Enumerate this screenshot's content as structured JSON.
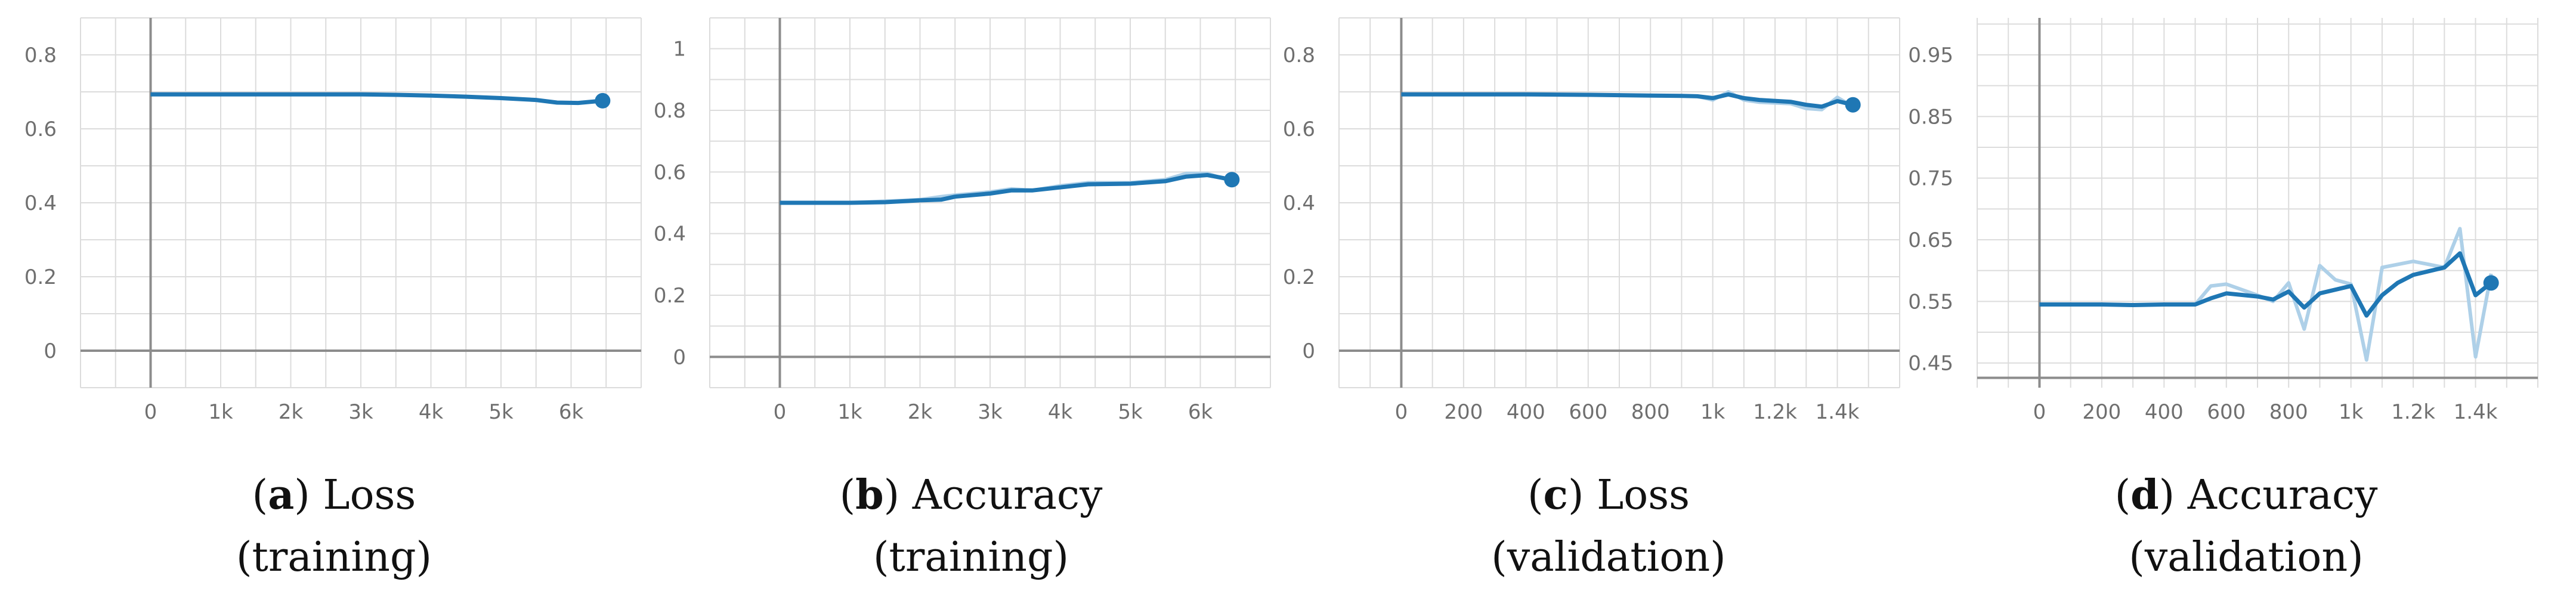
{
  "chart_data": [
    {
      "type": "line",
      "caption": {
        "letter": "a",
        "line1": "Loss",
        "line2": "(training)"
      },
      "x_ticks": [
        {
          "v": 0,
          "label": "0"
        },
        {
          "v": 1000,
          "label": "1k"
        },
        {
          "v": 2000,
          "label": "2k"
        },
        {
          "v": 3000,
          "label": "3k"
        },
        {
          "v": 4000,
          "label": "4k"
        },
        {
          "v": 5000,
          "label": "5k"
        },
        {
          "v": 6000,
          "label": "6k"
        }
      ],
      "y_ticks": [
        {
          "v": 0,
          "label": "0"
        },
        {
          "v": 0.2,
          "label": "0.2"
        },
        {
          "v": 0.4,
          "label": "0.4"
        },
        {
          "v": 0.6,
          "label": "0.6"
        },
        {
          "v": 0.8,
          "label": "0.8"
        }
      ],
      "xlim": [
        -1000,
        7000
      ],
      "ylim": [
        -0.1,
        0.9
      ],
      "grid": true,
      "series": [
        {
          "smoothed": [
            [
              0,
              0.693
            ],
            [
              500,
              0.693
            ],
            [
              1000,
              0.693
            ],
            [
              1500,
              0.693
            ],
            [
              2000,
              0.693
            ],
            [
              2500,
              0.693
            ],
            [
              3000,
              0.693
            ],
            [
              3500,
              0.692
            ],
            [
              4000,
              0.69
            ],
            [
              4500,
              0.687
            ],
            [
              5000,
              0.683
            ],
            [
              5500,
              0.678
            ],
            [
              5800,
              0.671
            ],
            [
              6100,
              0.67
            ],
            [
              6450,
              0.676
            ]
          ],
          "raw": [
            [
              0,
              0.693
            ],
            [
              500,
              0.693
            ],
            [
              1000,
              0.693
            ],
            [
              1500,
              0.693
            ],
            [
              2000,
              0.693
            ],
            [
              2500,
              0.693
            ],
            [
              3000,
              0.693
            ],
            [
              3500,
              0.692
            ],
            [
              4000,
              0.69
            ],
            [
              4500,
              0.687
            ],
            [
              5000,
              0.683
            ],
            [
              5500,
              0.678
            ],
            [
              5800,
              0.671
            ],
            [
              6100,
              0.67
            ],
            [
              6450,
              0.676
            ]
          ]
        }
      ]
    },
    {
      "type": "line",
      "caption": {
        "letter": "b",
        "line1": "Accuracy",
        "line2": "(training)"
      },
      "x_ticks": [
        {
          "v": 0,
          "label": "0"
        },
        {
          "v": 1000,
          "label": "1k"
        },
        {
          "v": 2000,
          "label": "2k"
        },
        {
          "v": 3000,
          "label": "3k"
        },
        {
          "v": 4000,
          "label": "4k"
        },
        {
          "v": 5000,
          "label": "5k"
        },
        {
          "v": 6000,
          "label": "6k"
        }
      ],
      "y_ticks": [
        {
          "v": 0,
          "label": "0"
        },
        {
          "v": 0.2,
          "label": "0.2"
        },
        {
          "v": 0.4,
          "label": "0.4"
        },
        {
          "v": 0.6,
          "label": "0.6"
        },
        {
          "v": 0.8,
          "label": "0.8"
        },
        {
          "v": 1,
          "label": "1"
        }
      ],
      "xlim": [
        -1000,
        7000
      ],
      "ylim": [
        -0.1,
        1.1
      ],
      "grid": true,
      "series": [
        {
          "smoothed": [
            [
              0,
              0.5
            ],
            [
              500,
              0.5
            ],
            [
              1000,
              0.5
            ],
            [
              1500,
              0.502
            ],
            [
              2000,
              0.508
            ],
            [
              2300,
              0.51
            ],
            [
              2500,
              0.52
            ],
            [
              3000,
              0.53
            ],
            [
              3300,
              0.54
            ],
            [
              3600,
              0.54
            ],
            [
              4000,
              0.55
            ],
            [
              4400,
              0.56
            ],
            [
              5000,
              0.562
            ],
            [
              5500,
              0.57
            ],
            [
              5800,
              0.585
            ],
            [
              6100,
              0.59
            ],
            [
              6450,
              0.575
            ]
          ],
          "raw": [
            [
              0,
              0.5
            ],
            [
              500,
              0.5
            ],
            [
              1000,
              0.5
            ],
            [
              1500,
              0.505
            ],
            [
              2000,
              0.51
            ],
            [
              2300,
              0.52
            ],
            [
              2500,
              0.525
            ],
            [
              3000,
              0.535
            ],
            [
              3300,
              0.545
            ],
            [
              3600,
              0.54
            ],
            [
              4000,
              0.555
            ],
            [
              4400,
              0.565
            ],
            [
              5000,
              0.565
            ],
            [
              5500,
              0.575
            ],
            [
              5800,
              0.595
            ],
            [
              6100,
              0.595
            ],
            [
              6450,
              0.57
            ]
          ]
        }
      ]
    },
    {
      "type": "line",
      "caption": {
        "letter": "c",
        "line1": "Loss",
        "line2": "(validation)"
      },
      "x_ticks": [
        {
          "v": 0,
          "label": "0"
        },
        {
          "v": 200,
          "label": "200"
        },
        {
          "v": 400,
          "label": "400"
        },
        {
          "v": 600,
          "label": "600"
        },
        {
          "v": 800,
          "label": "800"
        },
        {
          "v": 1000,
          "label": "1k"
        },
        {
          "v": 1200,
          "label": "1.2k"
        },
        {
          "v": 1400,
          "label": "1.4k"
        }
      ],
      "y_ticks": [
        {
          "v": 0,
          "label": "0"
        },
        {
          "v": 0.2,
          "label": "0.2"
        },
        {
          "v": 0.4,
          "label": "0.4"
        },
        {
          "v": 0.6,
          "label": "0.6"
        },
        {
          "v": 0.8,
          "label": "0.8"
        }
      ],
      "xlim": [
        -200,
        1600
      ],
      "ylim": [
        -0.1,
        0.9
      ],
      "grid": true,
      "series": [
        {
          "smoothed": [
            [
              0,
              0.693
            ],
            [
              200,
              0.693
            ],
            [
              400,
              0.693
            ],
            [
              600,
              0.692
            ],
            [
              800,
              0.69
            ],
            [
              900,
              0.689
            ],
            [
              950,
              0.688
            ],
            [
              1000,
              0.683
            ],
            [
              1050,
              0.693
            ],
            [
              1100,
              0.683
            ],
            [
              1150,
              0.678
            ],
            [
              1250,
              0.673
            ],
            [
              1300,
              0.665
            ],
            [
              1350,
              0.66
            ],
            [
              1400,
              0.675
            ],
            [
              1450,
              0.665
            ]
          ],
          "raw": [
            [
              0,
              0.693
            ],
            [
              200,
              0.693
            ],
            [
              400,
              0.693
            ],
            [
              600,
              0.692
            ],
            [
              800,
              0.69
            ],
            [
              900,
              0.689
            ],
            [
              950,
              0.688
            ],
            [
              1000,
              0.678
            ],
            [
              1050,
              0.7
            ],
            [
              1100,
              0.678
            ],
            [
              1150,
              0.672
            ],
            [
              1250,
              0.668
            ],
            [
              1300,
              0.655
            ],
            [
              1350,
              0.652
            ],
            [
              1400,
              0.685
            ],
            [
              1450,
              0.66
            ]
          ]
        }
      ]
    },
    {
      "type": "line",
      "caption": {
        "letter": "d",
        "line1": "Accuracy",
        "line2": "(validation)"
      },
      "x_ticks": [
        {
          "v": 0,
          "label": "0"
        },
        {
          "v": 200,
          "label": "200"
        },
        {
          "v": 400,
          "label": "400"
        },
        {
          "v": 600,
          "label": "600"
        },
        {
          "v": 800,
          "label": "800"
        },
        {
          "v": 1000,
          "label": "1k"
        },
        {
          "v": 1200,
          "label": "1.2k"
        },
        {
          "v": 1400,
          "label": "1.4k"
        }
      ],
      "y_ticks": [
        {
          "v": 0.45,
          "label": "0.45"
        },
        {
          "v": 0.55,
          "label": "0.55"
        },
        {
          "v": 0.65,
          "label": "0.65"
        },
        {
          "v": 0.75,
          "label": "0.75"
        },
        {
          "v": 0.85,
          "label": "0.85"
        },
        {
          "v": 0.95,
          "label": "0.95"
        }
      ],
      "xlim": [
        -200,
        1600
      ],
      "ylim": [
        0.41,
        1.01
      ],
      "grid": true,
      "series": [
        {
          "smoothed": [
            [
              0,
              0.545
            ],
            [
              200,
              0.545
            ],
            [
              300,
              0.544
            ],
            [
              400,
              0.545
            ],
            [
              500,
              0.545
            ],
            [
              550,
              0.555
            ],
            [
              600,
              0.563
            ],
            [
              700,
              0.558
            ],
            [
              750,
              0.553
            ],
            [
              800,
              0.566
            ],
            [
              850,
              0.54
            ],
            [
              900,
              0.563
            ],
            [
              1000,
              0.575
            ],
            [
              1050,
              0.527
            ],
            [
              1100,
              0.56
            ],
            [
              1150,
              0.58
            ],
            [
              1200,
              0.593
            ],
            [
              1300,
              0.605
            ],
            [
              1350,
              0.628
            ],
            [
              1400,
              0.56
            ],
            [
              1450,
              0.58
            ]
          ],
          "raw": [
            [
              0,
              0.545
            ],
            [
              200,
              0.545
            ],
            [
              300,
              0.544
            ],
            [
              400,
              0.545
            ],
            [
              500,
              0.545
            ],
            [
              550,
              0.575
            ],
            [
              600,
              0.578
            ],
            [
              700,
              0.56
            ],
            [
              750,
              0.55
            ],
            [
              800,
              0.58
            ],
            [
              850,
              0.505
            ],
            [
              900,
              0.608
            ],
            [
              950,
              0.585
            ],
            [
              1000,
              0.578
            ],
            [
              1050,
              0.455
            ],
            [
              1100,
              0.605
            ],
            [
              1200,
              0.615
            ],
            [
              1300,
              0.605
            ],
            [
              1350,
              0.668
            ],
            [
              1400,
              0.46
            ],
            [
              1450,
              0.595
            ]
          ]
        }
      ]
    }
  ],
  "colors": {
    "smoothed": "#1f77b4",
    "raw": "#aed0e8",
    "grid": "#dcdcdc",
    "axis": "#8c8c8c"
  }
}
